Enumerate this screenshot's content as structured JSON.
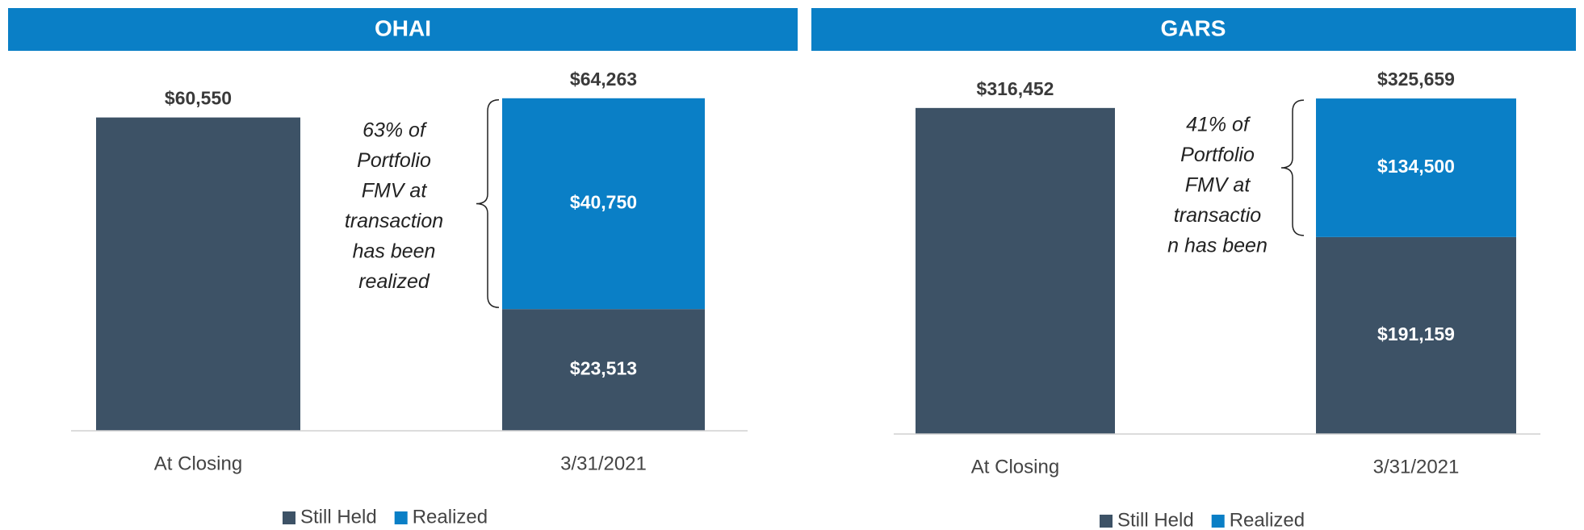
{
  "chart_data": [
    {
      "type": "bar",
      "stacked": true,
      "title": "OHAI",
      "categories": [
        "At Closing",
        "3/31/2021"
      ],
      "series": [
        {
          "name": "Still Held",
          "color": "#3d5266",
          "values": [
            60550,
            23513
          ],
          "value_labels": [
            null,
            "$23,513"
          ]
        },
        {
          "name": "Realized",
          "color": "#0a7fc6",
          "values": [
            null,
            40750
          ],
          "value_labels": [
            null,
            "$40,750"
          ]
        }
      ],
      "totals": [
        60550,
        64263
      ],
      "total_labels": [
        "$60,550",
        "$64,263"
      ],
      "annotation": [
        "63% of",
        "Portfolio",
        "FMV at",
        "transaction",
        "has been",
        "realized"
      ],
      "ylim": [
        0,
        70000
      ]
    },
    {
      "type": "bar",
      "stacked": true,
      "title": "GARS",
      "categories": [
        "At Closing",
        "3/31/2021"
      ],
      "series": [
        {
          "name": "Still Held",
          "color": "#3d5266",
          "values": [
            316452,
            191159
          ],
          "value_labels": [
            null,
            "$191,159"
          ]
        },
        {
          "name": "Realized",
          "color": "#0a7fc6",
          "values": [
            null,
            134500
          ],
          "value_labels": [
            null,
            "$134,500"
          ]
        }
      ],
      "totals": [
        316452,
        325659
      ],
      "total_labels": [
        "$316,452",
        "$325,659"
      ],
      "annotation": [
        "41% of",
        "Portfolio",
        "FMV at",
        "transactio",
        "n has been"
      ],
      "ylim": [
        0,
        350000
      ]
    }
  ]
}
